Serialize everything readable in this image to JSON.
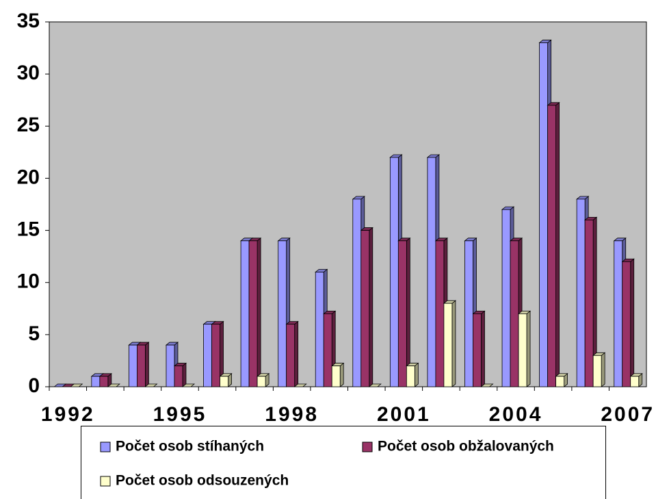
{
  "chart_data": {
    "type": "bar",
    "categories": [
      "1992",
      null,
      null,
      "1995",
      null,
      null,
      "1998",
      null,
      null,
      "2001",
      null,
      null,
      "2004",
      null,
      null,
      "2007"
    ],
    "series": [
      {
        "name": "Počet osob stíhaných",
        "color": "#9999ff",
        "values": [
          0,
          1,
          4,
          4,
          6,
          14,
          14,
          11,
          18,
          22,
          22,
          14,
          17,
          33,
          18,
          14
        ]
      },
      {
        "name": "Počet osob obžalovaných",
        "color": "#993366",
        "values": [
          0,
          1,
          4,
          2,
          6,
          14,
          6,
          7,
          15,
          14,
          14,
          7,
          14,
          27,
          16,
          12
        ]
      },
      {
        "name": "Počet osob odsouzených",
        "color": "#ffffcc",
        "values": [
          0,
          0,
          0,
          0,
          1,
          1,
          0,
          2,
          0,
          2,
          8,
          0,
          7,
          1,
          3,
          1
        ]
      }
    ],
    "ylim": [
      0,
      35
    ],
    "yticks": [
      0,
      5,
      10,
      15,
      20,
      25,
      30,
      35
    ],
    "grid": false
  }
}
